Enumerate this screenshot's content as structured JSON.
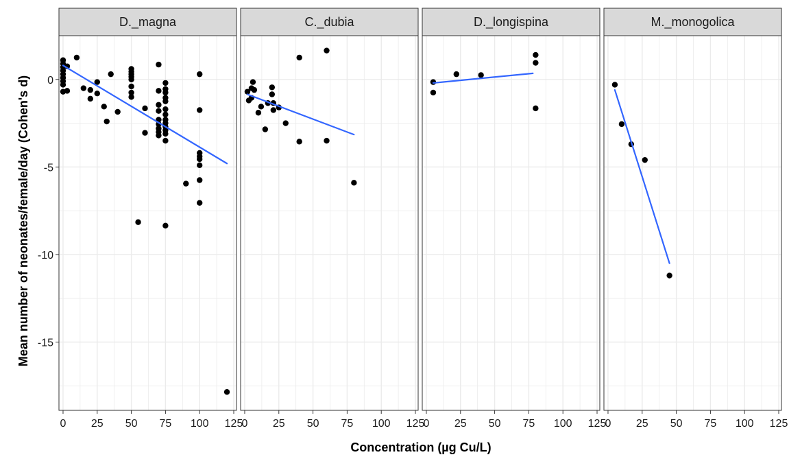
{
  "chart_data": {
    "type": "scatter",
    "xlabel": "Concentration (µg Cu/L)",
    "ylabel": "Mean number of neonates/female/day (Cohen's d)",
    "xlim": [
      -3,
      127
    ],
    "ylim": [
      -18.9,
      2.5
    ],
    "x_ticks": [
      0,
      25,
      50,
      75,
      100,
      125
    ],
    "y_ticks": [
      0,
      -5,
      -10,
      -15
    ],
    "x_minor_ticks": [
      12.5,
      37.5,
      62.5,
      87.5,
      112.5
    ],
    "y_minor_ticks": [
      2.5,
      -2.5,
      -7.5,
      -12.5,
      -17.5
    ],
    "grid": true,
    "colors": {
      "points": "#000000",
      "fit_line": "#3366FF",
      "strip_fill": "#D9D9D9",
      "grid": "#EBEBEB",
      "panel_border": "#333333"
    },
    "panels": [
      {
        "name": "D._magna",
        "points": [
          [
            0,
            1.1
          ],
          [
            0,
            0.9
          ],
          [
            0,
            0.7
          ],
          [
            0,
            0.5
          ],
          [
            0,
            0.3
          ],
          [
            0,
            0.1
          ],
          [
            0,
            -0.1
          ],
          [
            0,
            -0.3
          ],
          [
            0,
            -0.7
          ],
          [
            3,
            -0.65
          ],
          [
            3,
            0.75
          ],
          [
            10,
            1.25
          ],
          [
            15,
            -0.5
          ],
          [
            20,
            -0.6
          ],
          [
            20,
            -1.1
          ],
          [
            25,
            -0.15
          ],
          [
            25,
            -0.8
          ],
          [
            30,
            -1.55
          ],
          [
            32,
            -2.4
          ],
          [
            35,
            0.3
          ],
          [
            40,
            -1.85
          ],
          [
            50,
            0.6
          ],
          [
            50,
            0.45
          ],
          [
            50,
            0.3
          ],
          [
            50,
            0.15
          ],
          [
            50,
            0.0
          ],
          [
            50,
            -0.4
          ],
          [
            50,
            -0.75
          ],
          [
            50,
            -1.0
          ],
          [
            55,
            -8.15
          ],
          [
            60,
            -1.65
          ],
          [
            60,
            -3.05
          ],
          [
            70,
            0.85
          ],
          [
            70,
            -0.65
          ],
          [
            70,
            -1.45
          ],
          [
            70,
            -1.8
          ],
          [
            70,
            -2.3
          ],
          [
            70,
            -2.55
          ],
          [
            70,
            -2.8
          ],
          [
            70,
            -3.0
          ],
          [
            70,
            -3.2
          ],
          [
            75,
            -0.2
          ],
          [
            75,
            -0.55
          ],
          [
            75,
            -0.75
          ],
          [
            75,
            -1.05
          ],
          [
            75,
            -1.25
          ],
          [
            75,
            -1.7
          ],
          [
            75,
            -2.0
          ],
          [
            75,
            -2.3
          ],
          [
            75,
            -2.5
          ],
          [
            75,
            -2.7
          ],
          [
            75,
            -2.9
          ],
          [
            75,
            -3.1
          ],
          [
            75,
            -3.5
          ],
          [
            75,
            -8.35
          ],
          [
            90,
            -5.95
          ],
          [
            100,
            0.3
          ],
          [
            100,
            -1.75
          ],
          [
            100,
            -4.2
          ],
          [
            100,
            -4.4
          ],
          [
            100,
            -4.55
          ],
          [
            100,
            -4.9
          ],
          [
            100,
            -5.75
          ],
          [
            100,
            -7.05
          ],
          [
            120,
            -17.85
          ]
        ],
        "fit": {
          "x": [
            0,
            120
          ],
          "y": [
            0.8,
            -4.8
          ]
        }
      },
      {
        "name": "C._dubia",
        "points": [
          [
            2,
            -0.7
          ],
          [
            3,
            -1.2
          ],
          [
            5,
            -0.5
          ],
          [
            5,
            -1.05
          ],
          [
            6,
            -0.15
          ],
          [
            7,
            -0.6
          ],
          [
            10,
            -1.9
          ],
          [
            12,
            -1.55
          ],
          [
            15,
            -2.85
          ],
          [
            17,
            -1.35
          ],
          [
            20,
            -0.45
          ],
          [
            20,
            -0.85
          ],
          [
            21,
            -1.35
          ],
          [
            21,
            -1.75
          ],
          [
            25,
            -1.6
          ],
          [
            30,
            -2.5
          ],
          [
            40,
            1.25
          ],
          [
            40,
            -3.55
          ],
          [
            60,
            1.65
          ],
          [
            60,
            -3.5
          ],
          [
            80,
            -5.9
          ]
        ],
        "fit": {
          "x": [
            2,
            80
          ],
          "y": [
            -0.85,
            -3.15
          ]
        }
      },
      {
        "name": "D._longispina",
        "points": [
          [
            5,
            -0.15
          ],
          [
            5,
            -0.75
          ],
          [
            22,
            0.3
          ],
          [
            40,
            0.25
          ],
          [
            80,
            1.4
          ],
          [
            80,
            0.95
          ],
          [
            80,
            -1.65
          ]
        ],
        "fit": {
          "x": [
            5,
            78
          ],
          "y": [
            -0.2,
            0.35
          ]
        }
      },
      {
        "name": "M._monogolica",
        "points": [
          [
            5,
            -0.3
          ],
          [
            10,
            -2.55
          ],
          [
            17,
            -3.7
          ],
          [
            27,
            -4.6
          ],
          [
            45,
            -11.2
          ]
        ],
        "fit": {
          "x": [
            5,
            45
          ],
          "y": [
            -0.6,
            -10.5
          ]
        }
      }
    ]
  }
}
